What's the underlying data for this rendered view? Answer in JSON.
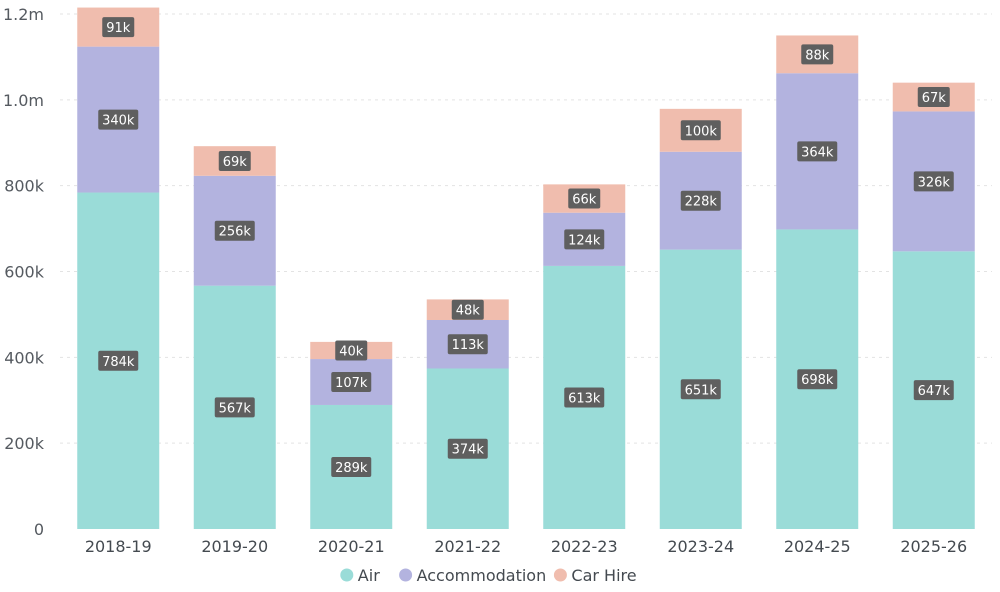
{
  "chart_data": {
    "type": "bar",
    "stacked": true,
    "categories": [
      "2018-19",
      "2019-20",
      "2020-21",
      "2021-22",
      "2022-23",
      "2023-24",
      "2024-25",
      "2025-26"
    ],
    "series": [
      {
        "name": "Air",
        "color": "#9adcd8",
        "values": [
          784000,
          567000,
          289000,
          374000,
          613000,
          651000,
          698000,
          647000
        ],
        "labels": [
          "784k",
          "567k",
          "289k",
          "374k",
          "613k",
          "651k",
          "698k",
          "647k"
        ]
      },
      {
        "name": "Accommodation",
        "color": "#b3b3df",
        "values": [
          340000,
          256000,
          107000,
          113000,
          124000,
          228000,
          364000,
          326000
        ],
        "labels": [
          "340k",
          "256k",
          "107k",
          "113k",
          "124k",
          "228k",
          "364k",
          "326k"
        ]
      },
      {
        "name": "Car Hire",
        "color": "#f0bdae",
        "values": [
          91000,
          69000,
          40000,
          48000,
          66000,
          100000,
          88000,
          67000
        ],
        "labels": [
          "91k",
          "69k",
          "40k",
          "48k",
          "66k",
          "100k",
          "88k",
          "67k"
        ]
      }
    ],
    "y_ticks": [
      {
        "value": 0,
        "label": "0"
      },
      {
        "value": 200000,
        "label": "200k"
      },
      {
        "value": 400000,
        "label": "400k"
      },
      {
        "value": 600000,
        "label": "600k"
      },
      {
        "value": 800000,
        "label": "800k"
      },
      {
        "value": 1000000,
        "label": "1.0m"
      },
      {
        "value": 1200000,
        "label": "1.2m"
      }
    ],
    "ylim": [
      0,
      1200000
    ],
    "title": "",
    "xlabel": "",
    "ylabel": "",
    "grid": true,
    "legend_position": "bottom-center",
    "label_box_color": "#5f5f5f",
    "grid_color": "#e3e3e3"
  }
}
